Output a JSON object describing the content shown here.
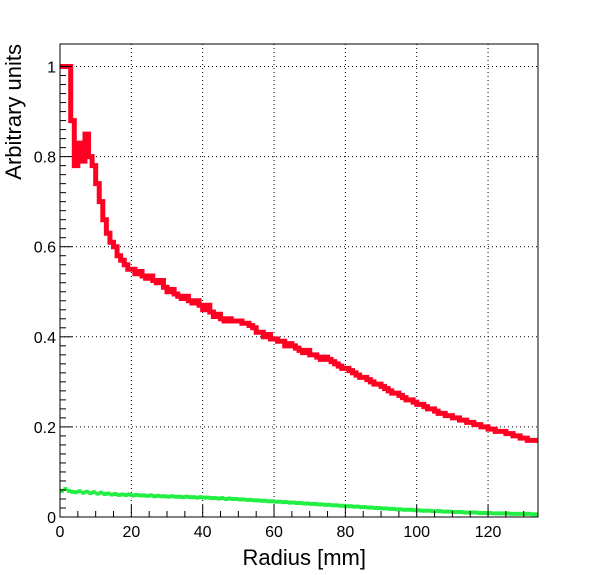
{
  "chart_data": {
    "type": "line",
    "title": "",
    "xlabel": "Radius [mm]",
    "ylabel": "Arbitrary units",
    "xlim": [
      0,
      134
    ],
    "ylim": [
      0,
      1.05
    ],
    "x_ticks": [
      0,
      20,
      40,
      60,
      80,
      100,
      120
    ],
    "y_ticks": [
      0,
      0.2,
      0.4,
      0.6,
      0.8,
      1
    ],
    "y_tick_labels": [
      "0",
      "0.2",
      "0.4",
      "0.6",
      "0.8",
      "1"
    ],
    "grid": true,
    "bin_width": 1,
    "series": [
      {
        "color": "#ff0022",
        "style": "step",
        "values": [
          1.0,
          1.0,
          1.0,
          0.88,
          0.78,
          0.83,
          0.79,
          0.85,
          0.8,
          0.78,
          0.74,
          0.7,
          0.66,
          0.63,
          0.61,
          0.6,
          0.58,
          0.57,
          0.56,
          0.55,
          0.55,
          0.54,
          0.545,
          0.535,
          0.53,
          0.535,
          0.525,
          0.52,
          0.525,
          0.51,
          0.5,
          0.505,
          0.495,
          0.49,
          0.485,
          0.49,
          0.48,
          0.475,
          0.48,
          0.47,
          0.46,
          0.47,
          0.455,
          0.445,
          0.45,
          0.44,
          0.435,
          0.44,
          0.435,
          0.435,
          0.435,
          0.43,
          0.43,
          0.425,
          0.42,
          0.41,
          0.41,
          0.4,
          0.405,
          0.395,
          0.395,
          0.39,
          0.39,
          0.38,
          0.385,
          0.38,
          0.375,
          0.37,
          0.365,
          0.37,
          0.36,
          0.36,
          0.355,
          0.35,
          0.355,
          0.35,
          0.345,
          0.34,
          0.335,
          0.33,
          0.33,
          0.325,
          0.32,
          0.315,
          0.31,
          0.31,
          0.305,
          0.3,
          0.295,
          0.295,
          0.29,
          0.285,
          0.28,
          0.275,
          0.275,
          0.27,
          0.265,
          0.26,
          0.26,
          0.255,
          0.25,
          0.25,
          0.245,
          0.24,
          0.24,
          0.235,
          0.23,
          0.23,
          0.225,
          0.225,
          0.22,
          0.22,
          0.215,
          0.215,
          0.21,
          0.21,
          0.205,
          0.205,
          0.2,
          0.2,
          0.195,
          0.195,
          0.19,
          0.19,
          0.19,
          0.185,
          0.185,
          0.18,
          0.18,
          0.175,
          0.175,
          0.17,
          0.17,
          0.17
        ]
      },
      {
        "color": "#22ee44",
        "style": "dotted",
        "values": [
          0.058,
          0.062,
          0.058,
          0.056,
          0.055,
          0.057,
          0.054,
          0.056,
          0.053,
          0.055,
          0.052,
          0.054,
          0.051,
          0.052,
          0.05,
          0.051,
          0.049,
          0.05,
          0.049,
          0.05,
          0.048,
          0.049,
          0.048,
          0.048,
          0.047,
          0.048,
          0.046,
          0.047,
          0.046,
          0.046,
          0.045,
          0.046,
          0.045,
          0.045,
          0.044,
          0.045,
          0.044,
          0.044,
          0.043,
          0.044,
          0.043,
          0.043,
          0.042,
          0.042,
          0.041,
          0.042,
          0.04,
          0.041,
          0.04,
          0.04,
          0.039,
          0.039,
          0.038,
          0.038,
          0.037,
          0.037,
          0.036,
          0.036,
          0.035,
          0.035,
          0.034,
          0.034,
          0.033,
          0.033,
          0.032,
          0.032,
          0.031,
          0.031,
          0.03,
          0.03,
          0.029,
          0.029,
          0.028,
          0.028,
          0.027,
          0.027,
          0.026,
          0.026,
          0.025,
          0.025,
          0.024,
          0.024,
          0.023,
          0.023,
          0.022,
          0.022,
          0.021,
          0.021,
          0.02,
          0.02,
          0.019,
          0.019,
          0.018,
          0.018,
          0.017,
          0.017,
          0.016,
          0.016,
          0.016,
          0.015,
          0.015,
          0.014,
          0.014,
          0.014,
          0.013,
          0.013,
          0.013,
          0.012,
          0.012,
          0.012,
          0.011,
          0.011,
          0.011,
          0.01,
          0.01,
          0.01,
          0.01,
          0.009,
          0.009,
          0.009,
          0.009,
          0.008,
          0.008,
          0.008,
          0.008,
          0.008,
          0.007,
          0.007,
          0.007,
          0.007,
          0.007,
          0.007,
          0.006,
          0.006
        ]
      }
    ]
  }
}
